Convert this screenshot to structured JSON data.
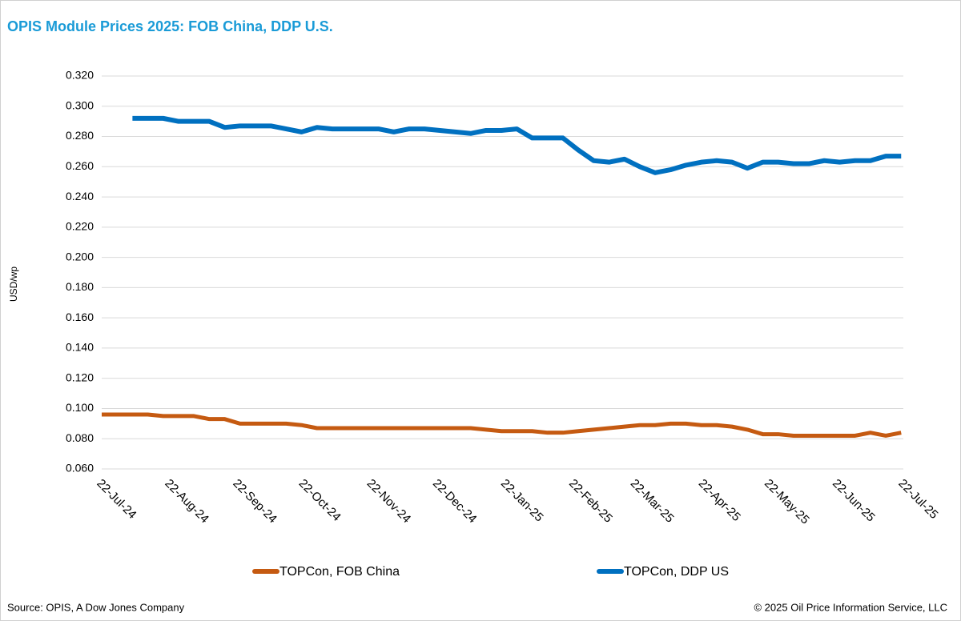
{
  "chart_data": {
    "type": "line",
    "title": "OPIS Module Prices 2025: FOB China, DDP U.S.",
    "y_label": "USD/wp",
    "source": "Source: OPIS, A Dow Jones Company",
    "copyright": "© 2025 Oil Price Information Service, LLC",
    "x": [
      "22-Jul-24",
      "29-Jul-24",
      "5-Aug-24",
      "12-Aug-24",
      "19-Aug-24",
      "26-Aug-24",
      "2-Sep-24",
      "9-Sep-24",
      "16-Sep-24",
      "23-Sep-24",
      "30-Sep-24",
      "7-Oct-24",
      "14-Oct-24",
      "21-Oct-24",
      "28-Oct-24",
      "4-Nov-24",
      "11-Nov-24",
      "18-Nov-24",
      "25-Nov-24",
      "2-Dec-24",
      "9-Dec-24",
      "16-Dec-24",
      "23-Dec-24",
      "30-Dec-24",
      "6-Jan-25",
      "13-Jan-25",
      "20-Jan-25",
      "27-Jan-25",
      "3-Feb-25",
      "10-Feb-25",
      "17-Feb-25",
      "24-Feb-25",
      "3-Mar-25",
      "10-Mar-25",
      "17-Mar-25",
      "24-Mar-25",
      "31-Mar-25",
      "7-Apr-25",
      "14-Apr-25",
      "21-Apr-25",
      "28-Apr-25",
      "5-May-25",
      "12-May-25",
      "19-May-25",
      "26-May-25",
      "2-Jun-25",
      "9-Jun-25",
      "16-Jun-25",
      "23-Jun-25",
      "30-Jun-25",
      "7-Jul-25",
      "14-Jul-25",
      "21-Jul-25"
    ],
    "series": [
      {
        "name": "TOPCon, FOB China",
        "color": "#c55a11",
        "values": [
          0.096,
          0.096,
          0.096,
          0.096,
          0.095,
          0.095,
          0.095,
          0.093,
          0.093,
          0.09,
          0.09,
          0.09,
          0.09,
          0.089,
          0.087,
          0.087,
          0.087,
          0.087,
          0.087,
          0.087,
          0.087,
          0.087,
          0.087,
          0.087,
          0.087,
          0.086,
          0.085,
          0.085,
          0.085,
          0.084,
          0.084,
          0.085,
          0.086,
          0.087,
          0.088,
          0.089,
          0.089,
          0.09,
          0.09,
          0.089,
          0.089,
          0.088,
          0.086,
          0.083,
          0.083,
          0.082,
          0.082,
          0.082,
          0.082,
          0.082,
          0.084,
          0.082,
          0.084
        ]
      },
      {
        "name": "TOPCon, DDP US",
        "color": "#0070c0",
        "values": [
          null,
          null,
          0.292,
          0.292,
          0.292,
          0.29,
          0.29,
          0.29,
          0.286,
          0.287,
          0.287,
          0.287,
          0.285,
          0.283,
          0.286,
          0.285,
          0.285,
          0.285,
          0.285,
          0.283,
          0.285,
          0.285,
          0.284,
          0.283,
          0.282,
          0.284,
          0.284,
          0.285,
          0.279,
          0.279,
          0.279,
          0.271,
          0.264,
          0.263,
          0.265,
          0.26,
          0.256,
          0.258,
          0.261,
          0.263,
          0.264,
          0.263,
          0.259,
          0.263,
          0.263,
          0.262,
          0.262,
          0.264,
          0.263,
          0.264,
          0.264,
          0.267,
          0.267
        ]
      }
    ],
    "xlim": [
      "22-Jul-24",
      "22-Jul-25"
    ],
    "xticks": [
      "22-Jul-24",
      "22-Aug-24",
      "22-Sep-24",
      "22-Oct-24",
      "22-Nov-24",
      "22-Dec-24",
      "22-Jan-25",
      "22-Feb-25",
      "22-Mar-25",
      "22-Apr-25",
      "22-May-25",
      "22-Jun-25",
      "22-Jul-25"
    ],
    "ylim": [
      0.06,
      0.32
    ],
    "yticks": [
      {
        "value": 0.06,
        "label": "0.060"
      },
      {
        "value": 0.08,
        "label": "0.080"
      },
      {
        "value": 0.1,
        "label": "0.100"
      },
      {
        "value": 0.12,
        "label": "0.120"
      },
      {
        "value": 0.14,
        "label": "0.140"
      },
      {
        "value": 0.16,
        "label": "0.160"
      },
      {
        "value": 0.18,
        "label": "0.180"
      },
      {
        "value": 0.2,
        "label": "0.200"
      },
      {
        "value": 0.22,
        "label": "0.220"
      },
      {
        "value": 0.24,
        "label": "0.240"
      },
      {
        "value": 0.26,
        "label": "0.260"
      },
      {
        "value": 0.28,
        "label": "0.280"
      },
      {
        "value": 0.3,
        "label": "0.300"
      },
      {
        "value": 0.32,
        "label": "0.320"
      }
    ],
    "grid": true,
    "legend": "bottom"
  }
}
